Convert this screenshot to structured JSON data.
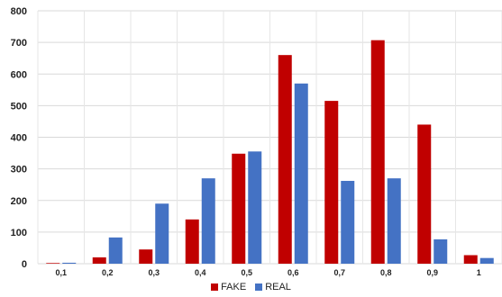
{
  "chart_data": {
    "type": "bar",
    "categories": [
      "0,1",
      "0,2",
      "0,3",
      "0,4",
      "0,5",
      "0,6",
      "0,7",
      "0,8",
      "0,9",
      "1"
    ],
    "series": [
      {
        "name": "FAKE",
        "color": "#C00000",
        "values": [
          2,
          20,
          45,
          140,
          348,
          660,
          515,
          707,
          440,
          27
        ]
      },
      {
        "name": "REAL",
        "color": "#4472C4",
        "values": [
          3,
          83,
          190,
          270,
          355,
          570,
          262,
          270,
          77,
          18
        ]
      }
    ],
    "yticks": [
      "0",
      "100",
      "200",
      "300",
      "400",
      "500",
      "600",
      "700",
      "800"
    ],
    "ylim": [
      0,
      800
    ],
    "grid": true,
    "legend_position": "bottom-center"
  }
}
